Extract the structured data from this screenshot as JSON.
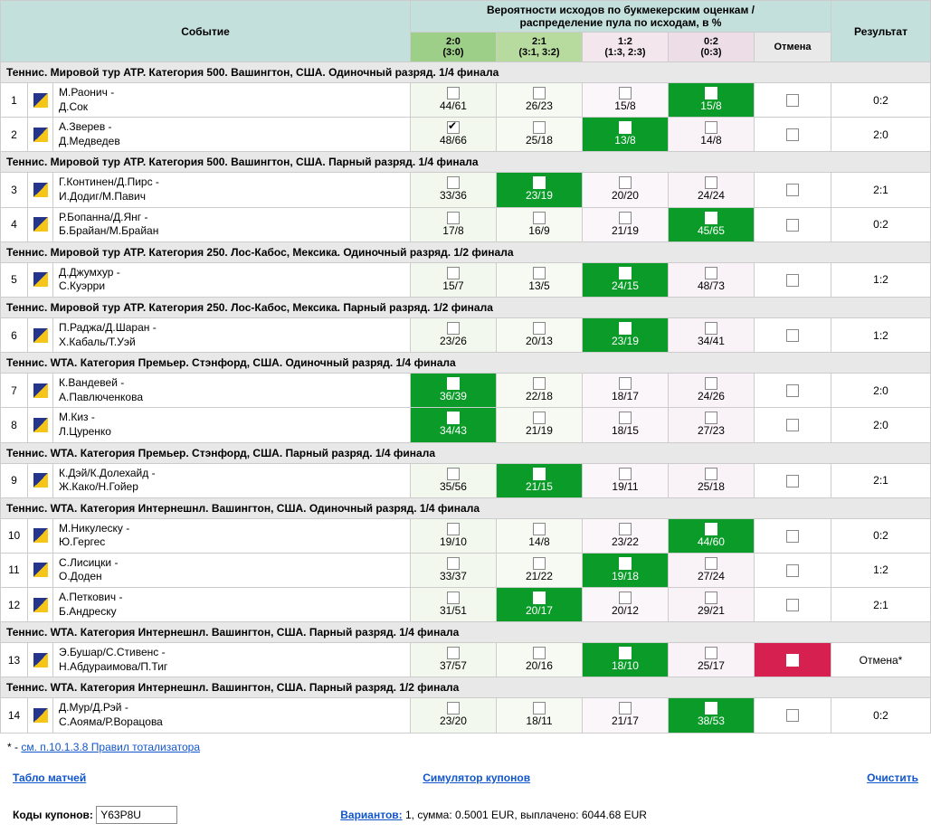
{
  "headers": {
    "event": "Событие",
    "prob_top": "Вероятности исходов по букмекерским оценкам /",
    "prob_bot": "распределение пула по исходам, в %",
    "result": "Результат",
    "cancel": "Отмена",
    "outcomes": [
      {
        "top": "2:0",
        "bot": "(3:0)"
      },
      {
        "top": "2:1",
        "bot": "(3:1, 3:2)"
      },
      {
        "top": "1:2",
        "bot": "(1:3, 2:3)"
      },
      {
        "top": "0:2",
        "bot": "(0:3)"
      }
    ]
  },
  "sections": [
    {
      "title": "Теннис. Мировой тур ATP. Категория 500. Вашингтон, США. Одиночный разряд. 1/4 финала",
      "rows": [
        {
          "n": 1,
          "p1": "М.Раонич -",
          "p2": "Д.Сок",
          "oc": [
            {
              "v": "44/61",
              "c": false,
              "w": false
            },
            {
              "v": "26/23",
              "c": false,
              "w": false
            },
            {
              "v": "15/8",
              "c": false,
              "w": false
            },
            {
              "v": "15/8",
              "c": true,
              "w": true
            }
          ],
          "cancel": false,
          "res": "0:2"
        },
        {
          "n": 2,
          "p1": "А.Зверев -",
          "p2": "Д.Медведев",
          "oc": [
            {
              "v": "48/66",
              "c": true,
              "w": false
            },
            {
              "v": "25/18",
              "c": false,
              "w": false
            },
            {
              "v": "13/8",
              "c": false,
              "w": true
            },
            {
              "v": "14/8",
              "c": false,
              "w": false
            }
          ],
          "cancel": false,
          "res": "2:0"
        }
      ]
    },
    {
      "title": "Теннис. Мировой тур ATP. Категория 500. Вашингтон, США. Парный разряд. 1/4 финала",
      "rows": [
        {
          "n": 3,
          "p1": "Г.Континен/Д.Пирс -",
          "p2": "И.Додиг/М.Павич",
          "oc": [
            {
              "v": "33/36",
              "c": false,
              "w": false
            },
            {
              "v": "23/19",
              "c": true,
              "w": true
            },
            {
              "v": "20/20",
              "c": false,
              "w": false
            },
            {
              "v": "24/24",
              "c": false,
              "w": false
            }
          ],
          "cancel": false,
          "res": "2:1"
        },
        {
          "n": 4,
          "p1": "Р.Бопанна/Д.Янг -",
          "p2": "Б.Брайан/М.Брайан",
          "oc": [
            {
              "v": "17/8",
              "c": false,
              "w": false
            },
            {
              "v": "16/9",
              "c": false,
              "w": false
            },
            {
              "v": "21/19",
              "c": false,
              "w": false
            },
            {
              "v": "45/65",
              "c": true,
              "w": true
            }
          ],
          "cancel": false,
          "res": "0:2"
        }
      ]
    },
    {
      "title": "Теннис. Мировой тур ATP. Категория 250. Лос-Кабос, Мексика. Одиночный разряд. 1/2 финала",
      "rows": [
        {
          "n": 5,
          "p1": "Д.Джумхур -",
          "p2": "С.Куэрри",
          "oc": [
            {
              "v": "15/7",
              "c": false,
              "w": false
            },
            {
              "v": "13/5",
              "c": false,
              "w": false
            },
            {
              "v": "24/15",
              "c": true,
              "w": true
            },
            {
              "v": "48/73",
              "c": false,
              "w": false
            }
          ],
          "cancel": false,
          "res": "1:2"
        }
      ]
    },
    {
      "title": "Теннис. Мировой тур ATP. Категория 250. Лос-Кабос, Мексика. Парный разряд. 1/2 финала",
      "rows": [
        {
          "n": 6,
          "p1": "П.Раджа/Д.Шаран -",
          "p2": "Х.Кабаль/Т.Уэй",
          "oc": [
            {
              "v": "23/26",
              "c": false,
              "w": false
            },
            {
              "v": "20/13",
              "c": false,
              "w": false
            },
            {
              "v": "23/19",
              "c": true,
              "w": true
            },
            {
              "v": "34/41",
              "c": false,
              "w": false
            }
          ],
          "cancel": false,
          "res": "1:2"
        }
      ]
    },
    {
      "title": "Теннис. WTA. Категория Премьер. Стэнфорд, США. Одиночный разряд. 1/4 финала",
      "rows": [
        {
          "n": 7,
          "p1": "К.Вандевей -",
          "p2": "А.Павлюченкова",
          "oc": [
            {
              "v": "36/39",
              "c": true,
              "w": true
            },
            {
              "v": "22/18",
              "c": false,
              "w": false
            },
            {
              "v": "18/17",
              "c": false,
              "w": false
            },
            {
              "v": "24/26",
              "c": false,
              "w": false
            }
          ],
          "cancel": false,
          "res": "2:0"
        },
        {
          "n": 8,
          "p1": "М.Киз -",
          "p2": "Л.Цуренко",
          "oc": [
            {
              "v": "34/43",
              "c": true,
              "w": true
            },
            {
              "v": "21/19",
              "c": false,
              "w": false
            },
            {
              "v": "18/15",
              "c": false,
              "w": false
            },
            {
              "v": "27/23",
              "c": false,
              "w": false
            }
          ],
          "cancel": false,
          "res": "2:0"
        }
      ]
    },
    {
      "title": "Теннис. WTA. Категория Премьер. Стэнфорд, США. Парный разряд. 1/4 финала",
      "rows": [
        {
          "n": 9,
          "p1": "К.Дэй/К.Долехайд -",
          "p2": "Ж.Како/Н.Гойер",
          "oc": [
            {
              "v": "35/56",
              "c": false,
              "w": false
            },
            {
              "v": "21/15",
              "c": true,
              "w": true
            },
            {
              "v": "19/11",
              "c": false,
              "w": false
            },
            {
              "v": "25/18",
              "c": false,
              "w": false
            }
          ],
          "cancel": false,
          "res": "2:1"
        }
      ]
    },
    {
      "title": "Теннис. WTA. Категория Интернешнл. Вашингтон, США. Одиночный разряд. 1/4 финала",
      "rows": [
        {
          "n": 10,
          "p1": "М.Никулеску -",
          "p2": "Ю.Гергес",
          "oc": [
            {
              "v": "19/10",
              "c": false,
              "w": false
            },
            {
              "v": "14/8",
              "c": false,
              "w": false
            },
            {
              "v": "23/22",
              "c": false,
              "w": false
            },
            {
              "v": "44/60",
              "c": true,
              "w": true
            }
          ],
          "cancel": false,
          "res": "0:2"
        },
        {
          "n": 11,
          "p1": "С.Лисицки -",
          "p2": "О.Доден",
          "oc": [
            {
              "v": "33/37",
              "c": false,
              "w": false
            },
            {
              "v": "21/22",
              "c": false,
              "w": false
            },
            {
              "v": "19/18",
              "c": true,
              "w": true
            },
            {
              "v": "27/24",
              "c": false,
              "w": false
            }
          ],
          "cancel": false,
          "res": "1:2"
        },
        {
          "n": 12,
          "p1": "А.Петкович -",
          "p2": "Б.Андреску",
          "oc": [
            {
              "v": "31/51",
              "c": false,
              "w": false
            },
            {
              "v": "20/17",
              "c": true,
              "w": true
            },
            {
              "v": "20/12",
              "c": false,
              "w": false
            },
            {
              "v": "29/21",
              "c": false,
              "w": false
            }
          ],
          "cancel": false,
          "res": "2:1"
        }
      ]
    },
    {
      "title": "Теннис. WTA. Категория Интернешнл. Вашингтон, США. Парный разряд. 1/4 финала",
      "rows": [
        {
          "n": 13,
          "p1": "Э.Бушар/С.Стивенс -",
          "p2": "Н.Абдураимова/П.Тиг",
          "oc": [
            {
              "v": "37/57",
              "c": false,
              "w": false
            },
            {
              "v": "20/16",
              "c": false,
              "w": false
            },
            {
              "v": "18/10",
              "c": false,
              "w": true
            },
            {
              "v": "25/17",
              "c": false,
              "w": false
            }
          ],
          "cancel": true,
          "res": "Отмена*"
        }
      ]
    },
    {
      "title": "Теннис. WTA. Категория Интернешнл. Вашингтон, США. Парный разряд. 1/2 финала",
      "rows": [
        {
          "n": 14,
          "p1": "Д.Мур/Д.Рэй -",
          "p2": "С.Аояма/Р.Ворацова",
          "oc": [
            {
              "v": "23/20",
              "c": false,
              "w": false
            },
            {
              "v": "18/11",
              "c": false,
              "w": false
            },
            {
              "v": "21/17",
              "c": false,
              "w": false
            },
            {
              "v": "38/53",
              "c": true,
              "w": true
            }
          ],
          "cancel": false,
          "res": "0:2"
        }
      ]
    }
  ],
  "foot": {
    "note_prefix": "* - ",
    "note_link": "см. п.10.1.3.8 Правил тотализатора",
    "link_tablo": "Табло матчей",
    "link_sim": "Симулятор купонов",
    "link_clear": "Очистить",
    "codes_label": "Коды купонов:",
    "code_value": "Y63P8U",
    "variants_label": "Вариантов:",
    "variants_text": " 1, сумма: 0.5001 EUR, выплачено: 6044.68 EUR"
  }
}
